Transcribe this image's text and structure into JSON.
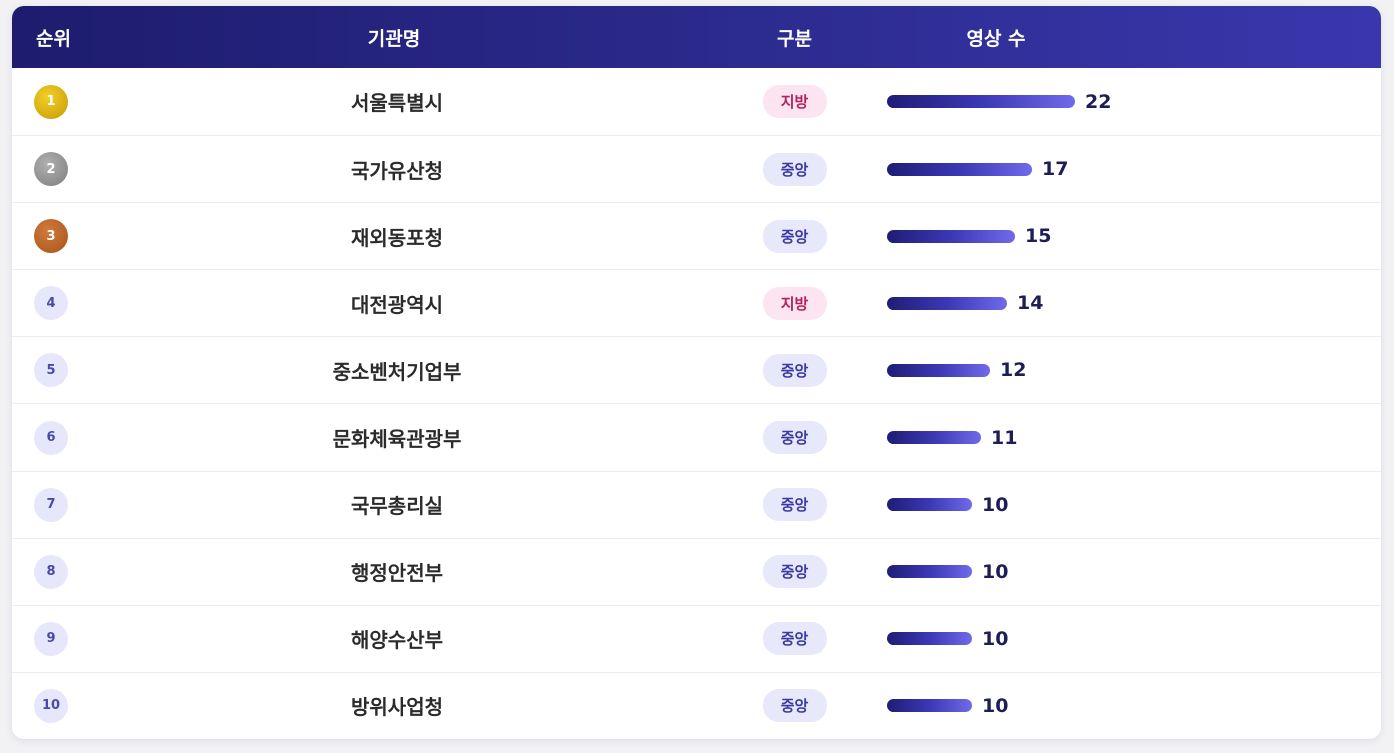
{
  "table": {
    "headers": {
      "rank": "순위",
      "org": "기관명",
      "type": "구분",
      "count": "영상 수"
    },
    "max_count": 22,
    "rows": [
      {
        "rank": "1",
        "org": "서울특별시",
        "type": "지방",
        "type_kind": "local",
        "count": 22
      },
      {
        "rank": "2",
        "org": "국가유산청",
        "type": "중앙",
        "type_kind": "central",
        "count": 17
      },
      {
        "rank": "3",
        "org": "재외동포청",
        "type": "중앙",
        "type_kind": "central",
        "count": 15
      },
      {
        "rank": "4",
        "org": "대전광역시",
        "type": "지방",
        "type_kind": "local",
        "count": 14
      },
      {
        "rank": "5",
        "org": "중소벤처기업부",
        "type": "중앙",
        "type_kind": "central",
        "count": 12
      },
      {
        "rank": "6",
        "org": "문화체육관광부",
        "type": "중앙",
        "type_kind": "central",
        "count": 11
      },
      {
        "rank": "7",
        "org": "국무총리실",
        "type": "중앙",
        "type_kind": "central",
        "count": 10
      },
      {
        "rank": "8",
        "org": "행정안전부",
        "type": "중앙",
        "type_kind": "central",
        "count": 10
      },
      {
        "rank": "9",
        "org": "해양수산부",
        "type": "중앙",
        "type_kind": "central",
        "count": 10
      },
      {
        "rank": "10",
        "org": "방위사업청",
        "type": "중앙",
        "type_kind": "central",
        "count": 10
      }
    ]
  },
  "colors": {
    "header_start": "#1d1c6e",
    "header_end": "#3a37ad",
    "gold": "#e0b612",
    "silver": "#9a9a9a",
    "bronze": "#b8622a",
    "badge_central_bg": "#e8e8fb",
    "badge_local_bg": "#fde4f1"
  }
}
